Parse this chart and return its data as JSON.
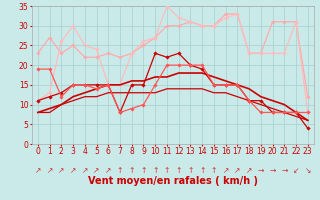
{
  "xlabel": "Vent moyen/en rafales ( km/h )",
  "background_color": "#caeaea",
  "grid_color": "#aad4d4",
  "xlim": [
    -0.5,
    23.5
  ],
  "ylim": [
    0,
    35
  ],
  "yticks": [
    0,
    5,
    10,
    15,
    20,
    25,
    30,
    35
  ],
  "xticks": [
    0,
    1,
    2,
    3,
    4,
    5,
    6,
    7,
    8,
    9,
    10,
    11,
    12,
    13,
    14,
    15,
    16,
    17,
    18,
    19,
    20,
    21,
    22,
    23
  ],
  "series": [
    {
      "x": [
        0,
        1,
        2,
        3,
        4,
        5,
        6,
        7,
        8,
        9,
        10,
        11,
        12,
        13,
        14,
        15,
        16,
        17,
        18,
        19,
        20,
        21,
        22,
        23
      ],
      "y": [
        11,
        12,
        13,
        15,
        15,
        15,
        15,
        8,
        15,
        15,
        23,
        22,
        23,
        20,
        19,
        15,
        15,
        15,
        11,
        11,
        8,
        8,
        8,
        4
      ],
      "color": "#cc0000",
      "lw": 0.9,
      "marker": "D",
      "markersize": 1.8,
      "zorder": 5
    },
    {
      "x": [
        0,
        1,
        2,
        3,
        4,
        5,
        6,
        7,
        8,
        9,
        10,
        11,
        12,
        13,
        14,
        15,
        16,
        17,
        18,
        19,
        20,
        21,
        22,
        23
      ],
      "y": [
        8,
        9,
        10,
        12,
        13,
        14,
        15,
        15,
        16,
        16,
        17,
        17,
        18,
        18,
        18,
        17,
        16,
        15,
        14,
        12,
        11,
        10,
        8,
        6
      ],
      "color": "#cc0000",
      "lw": 1.2,
      "marker": null,
      "markersize": 0,
      "zorder": 4
    },
    {
      "x": [
        0,
        1,
        2,
        3,
        4,
        5,
        6,
        7,
        8,
        9,
        10,
        11,
        12,
        13,
        14,
        15,
        16,
        17,
        18,
        19,
        20,
        21,
        22,
        23
      ],
      "y": [
        19,
        19,
        12,
        15,
        15,
        14,
        15,
        8,
        9,
        10,
        15,
        20,
        20,
        20,
        20,
        15,
        15,
        15,
        11,
        8,
        8,
        8,
        8,
        8
      ],
      "color": "#ff5555",
      "lw": 0.9,
      "marker": "D",
      "markersize": 1.8,
      "zorder": 5
    },
    {
      "x": [
        0,
        1,
        2,
        3,
        4,
        5,
        6,
        7,
        8,
        9,
        10,
        11,
        12,
        13,
        14,
        15,
        16,
        17,
        18,
        19,
        20,
        21,
        22,
        23
      ],
      "y": [
        23,
        27,
        23,
        25,
        22,
        22,
        23,
        22,
        23,
        25,
        27,
        30,
        30,
        31,
        30,
        30,
        33,
        33,
        23,
        23,
        31,
        31,
        31,
        12
      ],
      "color": "#ffaaaa",
      "lw": 0.9,
      "marker": "D",
      "markersize": 1.8,
      "zorder": 3
    },
    {
      "x": [
        0,
        1,
        2,
        3,
        4,
        5,
        6,
        7,
        8,
        9,
        10,
        11,
        12,
        13,
        14,
        15,
        16,
        17,
        18,
        19,
        20,
        21,
        22,
        23
      ],
      "y": [
        11,
        13,
        26,
        30,
        25,
        24,
        15,
        15,
        23,
        26,
        27,
        35,
        32,
        31,
        30,
        30,
        32,
        33,
        23,
        23,
        23,
        23,
        31,
        8
      ],
      "color": "#ffbbbb",
      "lw": 0.9,
      "marker": "D",
      "markersize": 1.8,
      "zorder": 3
    },
    {
      "x": [
        0,
        1,
        2,
        3,
        4,
        5,
        6,
        7,
        8,
        9,
        10,
        11,
        12,
        13,
        14,
        15,
        16,
        17,
        18,
        19,
        20,
        21,
        22,
        23
      ],
      "y": [
        8,
        8,
        10,
        11,
        12,
        12,
        13,
        13,
        13,
        13,
        13,
        14,
        14,
        14,
        14,
        13,
        13,
        12,
        11,
        10,
        9,
        8,
        7,
        6
      ],
      "color": "#cc0000",
      "lw": 0.9,
      "marker": null,
      "markersize": 0,
      "zorder": 4
    }
  ],
  "wind_arrows": [
    "↗",
    "↗",
    "↗",
    "↗",
    "↗",
    "↗",
    "↗",
    "↑",
    "↑",
    "↑",
    "↑",
    "↑",
    "↑",
    "↑",
    "↑",
    "↑",
    "↗",
    "↗",
    "↗",
    "→",
    "→",
    "→",
    "↙",
    "↘"
  ],
  "arrow_color": "#cc3333",
  "xlabel_color": "#cc0000",
  "xlabel_fontsize": 7,
  "tick_fontsize": 5.5,
  "tick_color": "#cc0000"
}
